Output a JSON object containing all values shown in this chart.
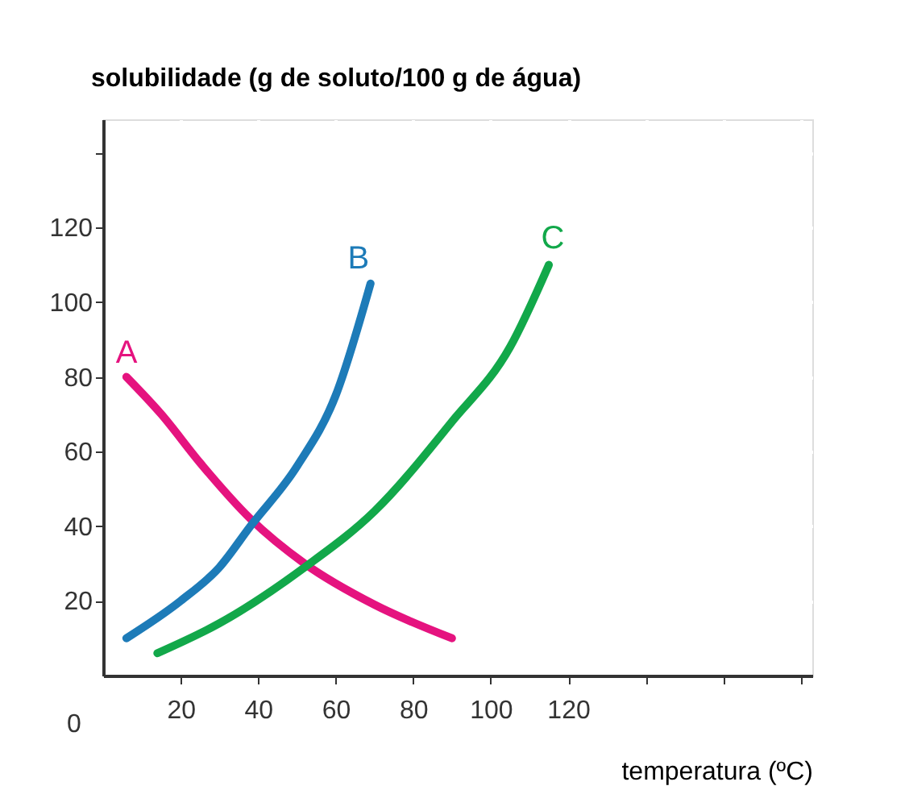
{
  "chart_data": {
    "type": "line",
    "xlabel": "temperatura (ºC)",
    "ylabel": "solubilidade (g de soluto/100 g de água)",
    "xlim": [
      0,
      183
    ],
    "ylim": [
      0,
      149
    ],
    "xticks": [
      20,
      40,
      60,
      80,
      100,
      120,
      {
        "value": 140,
        "label": null
      },
      {
        "value": 160,
        "label": null
      },
      {
        "value": 180,
        "label": null
      }
    ],
    "yticks": [
      20,
      40,
      60,
      80,
      100,
      120,
      {
        "value": 140,
        "label": null
      }
    ],
    "grid": true,
    "legend": false,
    "marker": "none",
    "line_style": "solid",
    "series": [
      {
        "color": "#e5137f",
        "x": [
          6,
          15,
          25,
          38,
          52,
          70,
          90
        ],
        "values": [
          80,
          70,
          57,
          42,
          30,
          19,
          10
        ]
      },
      {
        "color": "#1d7bb8",
        "x": [
          6,
          20,
          30,
          38,
          50,
          60,
          69
        ],
        "values": [
          10,
          20,
          29,
          40,
          56,
          75,
          105
        ]
      },
      {
        "color": "#12a84a",
        "x": [
          14,
          30,
          52,
          70,
          90,
          105,
          115
        ],
        "values": [
          6,
          14,
          29,
          44,
          68,
          88,
          110
        ]
      }
    ],
    "annotations": [
      "A",
      "B",
      "C",
      "0"
    ]
  }
}
